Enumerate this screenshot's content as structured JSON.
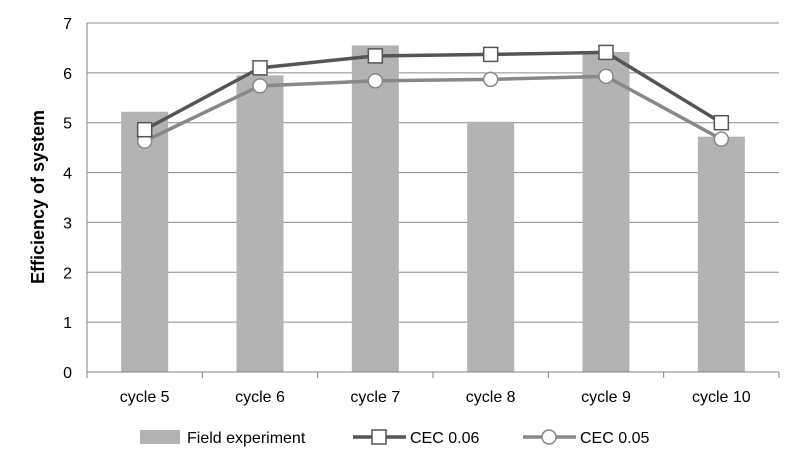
{
  "chart_data": {
    "type": "bar",
    "categories": [
      "cycle 5",
      "cycle 6",
      "cycle 7",
      "cycle 8",
      "cycle 9",
      "cycle 10"
    ],
    "series": [
      {
        "name": "Field experiment",
        "type": "bar",
        "values": [
          5.22,
          5.95,
          6.55,
          5.02,
          6.42,
          4.72
        ],
        "color": "#b3b3b3"
      },
      {
        "name": "CEC 0.06",
        "type": "line",
        "marker": "square",
        "values": [
          4.86,
          6.1,
          6.34,
          6.37,
          6.41,
          5.0
        ],
        "color": "#555555"
      },
      {
        "name": "CEC 0.05",
        "type": "line",
        "marker": "circle",
        "values": [
          4.63,
          5.74,
          5.84,
          5.87,
          5.93,
          4.67
        ],
        "color": "#888888"
      }
    ],
    "title": "",
    "xlabel": "",
    "ylabel": "Efficiency of system",
    "ylim": [
      0,
      7
    ],
    "yticks": [
      0,
      1,
      2,
      3,
      4,
      5,
      6,
      7
    ],
    "grid": true,
    "legend": "bottom"
  }
}
